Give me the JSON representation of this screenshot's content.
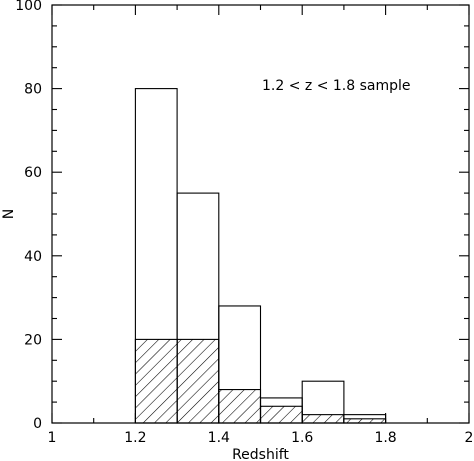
{
  "chart_data": {
    "type": "bar",
    "subtype": "histogram",
    "xlabel": "Redshift",
    "ylabel": "N",
    "xlim": [
      1,
      2
    ],
    "ylim": [
      0,
      100
    ],
    "x_ticks": [
      "1",
      "1.2",
      "1.4",
      "1.6",
      "1.8",
      "2"
    ],
    "y_ticks": [
      "0",
      "20",
      "40",
      "60",
      "80",
      "100"
    ],
    "annotation": "1.2 < z < 1.8 sample",
    "grid": false,
    "bin_edges": [
      1.2,
      1.3,
      1.4,
      1.5,
      1.6,
      1.7,
      1.8
    ],
    "series": [
      {
        "style": "open",
        "values": [
          80,
          55,
          28,
          6,
          10,
          2
        ]
      },
      {
        "style": "hatched",
        "values": [
          20,
          20,
          8,
          4,
          2,
          1
        ]
      }
    ]
  }
}
